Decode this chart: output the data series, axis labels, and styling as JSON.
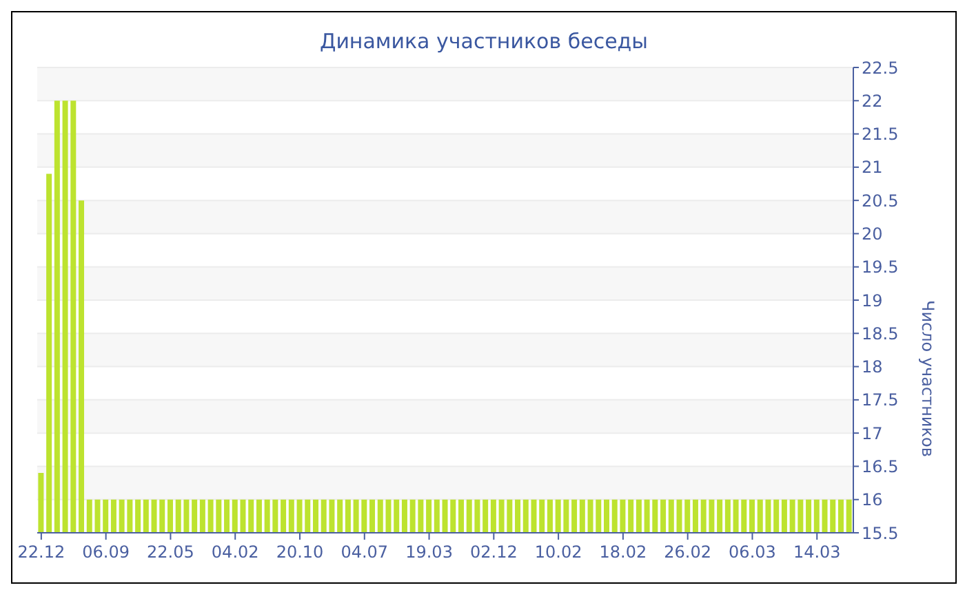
{
  "chart_data": {
    "type": "bar",
    "title": "Динамика участников беседы",
    "ylabel": "Число участников",
    "categories": [
      "22.12",
      null,
      null,
      null,
      null,
      null,
      null,
      null,
      "06.09",
      null,
      null,
      null,
      null,
      null,
      null,
      null,
      "22.05",
      null,
      null,
      null,
      null,
      null,
      null,
      null,
      "04.02",
      null,
      null,
      null,
      null,
      null,
      null,
      null,
      "20.10",
      null,
      null,
      null,
      null,
      null,
      null,
      null,
      "04.07",
      null,
      null,
      null,
      null,
      null,
      null,
      null,
      "19.03",
      null,
      null,
      null,
      null,
      null,
      null,
      null,
      "02.12",
      null,
      null,
      null,
      null,
      null,
      null,
      null,
      "10.02",
      null,
      null,
      null,
      null,
      null,
      null,
      null,
      "18.02",
      null,
      null,
      null,
      null,
      null,
      null,
      null,
      "26.02",
      null,
      null,
      null,
      null,
      null,
      null,
      null,
      "06.03",
      null,
      null,
      null,
      null,
      null,
      null,
      null,
      "14.03",
      null,
      null,
      null,
      null
    ],
    "values": [
      16.4,
      20.9,
      22,
      22,
      22,
      20.5,
      16,
      16,
      16,
      16,
      16,
      16,
      16,
      16,
      16,
      16,
      16,
      16,
      16,
      16,
      16,
      16,
      16,
      16,
      16,
      16,
      16,
      16,
      16,
      16,
      16,
      16,
      16,
      16,
      16,
      16,
      16,
      16,
      16,
      16,
      16,
      16,
      16,
      16,
      16,
      16,
      16,
      16,
      16,
      16,
      16,
      16,
      16,
      16,
      16,
      16,
      16,
      16,
      16,
      16,
      16,
      16,
      16,
      16,
      16,
      16,
      16,
      16,
      16,
      16,
      16,
      16,
      16,
      16,
      16,
      16,
      16,
      16,
      16,
      16,
      16,
      16,
      16,
      16,
      16,
      16,
      16,
      16,
      16,
      16,
      16,
      16,
      16,
      16,
      16,
      16,
      16,
      16,
      16,
      16,
      16
    ],
    "color": "#bde32f",
    "ylim": [
      15.5,
      22.5
    ],
    "yticks": [
      15.5,
      16,
      16.5,
      17,
      17.5,
      18,
      18.5,
      19,
      19.5,
      20,
      20.5,
      21,
      21.5,
      22,
      22.5
    ],
    "grid": "y",
    "legend": false
  }
}
